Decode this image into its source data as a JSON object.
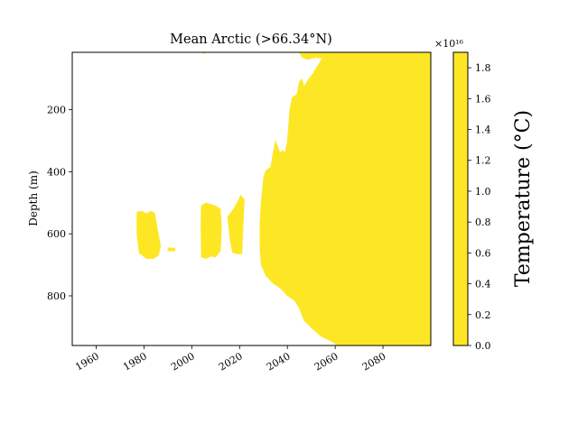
{
  "chart_data": {
    "type": "heatmap",
    "title": "Mean Arctic (>66.34°N)",
    "xlabel": "",
    "ylabel": "Depth (m)",
    "xlim": [
      1950,
      2100
    ],
    "ylim": [
      960,
      15
    ],
    "x_ticks": [
      1960,
      1980,
      2000,
      2020,
      2040,
      2060,
      2080
    ],
    "x_tick_labels": [
      "1960",
      "1980",
      "2000",
      "2020",
      "2040",
      "2060",
      "2080"
    ],
    "y_ticks": [
      200,
      400,
      600,
      800
    ],
    "y_tick_labels": [
      "200",
      "400",
      "600",
      "800"
    ],
    "colorbar": {
      "label": "Temperature (°C)",
      "multiplier": "×10¹⁶",
      "min": 0.0,
      "max": 1.9,
      "ticks": [
        0.0,
        0.2,
        0.4,
        0.6,
        0.8,
        1.0,
        1.2,
        1.4,
        1.6,
        1.8
      ],
      "tick_labels": [
        "0.0",
        "0.2",
        "0.4",
        "0.6",
        "0.8",
        "1.0",
        "1.2",
        "1.4",
        "1.6",
        "1.8"
      ],
      "color": "#fde725"
    },
    "filled_regions": [
      {
        "name": "",
        "value": 1.9,
        "polygon": [
          [
            1977,
            530
          ],
          [
            1979,
            527
          ],
          [
            1981,
            535
          ],
          [
            1983,
            527
          ],
          [
            1984.5,
            533
          ],
          [
            1985.5,
            580
          ],
          [
            1987,
            640
          ],
          [
            1986,
            670
          ],
          [
            1984,
            680
          ],
          [
            1981,
            680
          ],
          [
            1978,
            662
          ],
          [
            1977,
            600
          ]
        ]
      },
      {
        "name": "",
        "value": 1.9,
        "polygon": [
          [
            1990,
            645
          ],
          [
            1993,
            646
          ],
          [
            1993,
            655
          ],
          [
            1990,
            656
          ]
        ]
      },
      {
        "name": "",
        "value": 1.9,
        "polygon": [
          [
            2004,
            510
          ],
          [
            2006,
            500
          ],
          [
            2008,
            505
          ],
          [
            2010,
            510
          ],
          [
            2012,
            520
          ],
          [
            2012.5,
            580
          ],
          [
            2012,
            655
          ],
          [
            2010,
            675
          ],
          [
            2008,
            672
          ],
          [
            2006,
            680
          ],
          [
            2004,
            675
          ],
          [
            2003.8,
            570
          ]
        ]
      },
      {
        "name": "",
        "value": 1.9,
        "polygon": [
          [
            2015,
            545
          ],
          [
            2017,
            525
          ],
          [
            2019,
            500
          ],
          [
            2020.5,
            475
          ],
          [
            2022,
            490
          ],
          [
            2021.5,
            580
          ],
          [
            2021,
            665
          ],
          [
            2019,
            665
          ],
          [
            2017,
            660
          ],
          [
            2016,
            620
          ]
        ]
      },
      {
        "name": "",
        "value": 1.9,
        "polygon": [
          [
            2028.5,
            560
          ],
          [
            2029,
            500
          ],
          [
            2030,
            420
          ],
          [
            2031,
            395
          ],
          [
            2033,
            385
          ],
          [
            2034,
            340
          ],
          [
            2035,
            300
          ],
          [
            2036,
            320
          ],
          [
            2037,
            340
          ],
          [
            2038,
            330
          ],
          [
            2039,
            340
          ],
          [
            2040,
            300
          ],
          [
            2041,
            200
          ],
          [
            2042,
            160
          ],
          [
            2044,
            150
          ],
          [
            2045,
            110
          ],
          [
            2046,
            100
          ],
          [
            2047,
            125
          ],
          [
            2049,
            100
          ],
          [
            2050,
            90
          ],
          [
            2051,
            80
          ],
          [
            2052,
            65
          ],
          [
            2053,
            55
          ],
          [
            2054,
            40
          ],
          [
            2055,
            35
          ],
          [
            2052,
            32
          ],
          [
            2048,
            38
          ],
          [
            2046,
            30
          ],
          [
            2045,
            15
          ],
          [
            2100,
            15
          ],
          [
            2100,
            960
          ],
          [
            2061,
            960
          ],
          [
            2058,
            945
          ],
          [
            2054,
            930
          ],
          [
            2051,
            910
          ],
          [
            2047,
            880
          ],
          [
            2045,
            840
          ],
          [
            2043,
            815
          ],
          [
            2040,
            800
          ],
          [
            2037,
            775
          ],
          [
            2034,
            760
          ],
          [
            2031,
            735
          ],
          [
            2029,
            700
          ],
          [
            2028.5,
            650
          ]
        ]
      },
      {
        "name": "",
        "value": 1.9,
        "polygon": [
          [
            2004.5,
            15
          ],
          [
            2006,
            15
          ],
          [
            2005.3,
            20
          ]
        ]
      }
    ]
  }
}
